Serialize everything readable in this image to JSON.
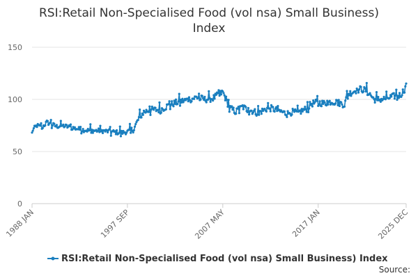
{
  "chart_data": {
    "type": "line",
    "title_lines": [
      "RSI:Retail Non-Specialised Food (vol nsa) Small Business)",
      "Index"
    ],
    "xlabel": "",
    "ylabel": "",
    "x_tick_labels": [
      "1988 JAN",
      "1997 SEP",
      "2007 MAY",
      "2017 JAN",
      "2025 DEC"
    ],
    "x_tick_indices": [
      0,
      116,
      232,
      348,
      455
    ],
    "n_points": 456,
    "ylim": [
      0,
      150
    ],
    "y_ticks": [
      0,
      50,
      100,
      150
    ],
    "grid": "horizontal",
    "color": "#1a7fbf",
    "legend_position": "bottom-center",
    "series": [
      {
        "name": "RSI:Retail Non-Specialised Food (vol nsa) Small Business) Index",
        "anchors": [
          [
            0,
            70
          ],
          [
            6,
            75
          ],
          [
            12,
            73
          ],
          [
            18,
            78
          ],
          [
            24,
            76
          ],
          [
            30,
            74
          ],
          [
            36,
            75
          ],
          [
            48,
            73
          ],
          [
            60,
            71
          ],
          [
            72,
            70
          ],
          [
            84,
            70
          ],
          [
            96,
            69
          ],
          [
            108,
            68
          ],
          [
            116,
            69
          ],
          [
            120,
            70
          ],
          [
            124,
            72
          ],
          [
            130,
            82
          ],
          [
            136,
            88
          ],
          [
            144,
            90
          ],
          [
            156,
            90
          ],
          [
            168,
            95
          ],
          [
            180,
            98
          ],
          [
            192,
            100
          ],
          [
            200,
            102
          ],
          [
            210,
            100
          ],
          [
            220,
            101
          ],
          [
            232,
            107
          ],
          [
            236,
            100
          ],
          [
            240,
            92
          ],
          [
            248,
            88
          ],
          [
            256,
            93
          ],
          [
            262,
            90
          ],
          [
            268,
            89
          ],
          [
            274,
            87
          ],
          [
            280,
            89
          ],
          [
            288,
            92
          ],
          [
            296,
            90
          ],
          [
            304,
            88
          ],
          [
            310,
            86
          ],
          [
            316,
            88
          ],
          [
            322,
            87
          ],
          [
            328,
            89
          ],
          [
            334,
            91
          ],
          [
            340,
            96
          ],
          [
            348,
            97
          ],
          [
            356,
            96
          ],
          [
            364,
            98
          ],
          [
            372,
            97
          ],
          [
            380,
            95
          ],
          [
            384,
            105
          ],
          [
            392,
            108
          ],
          [
            400,
            110
          ],
          [
            408,
            108
          ],
          [
            416,
            100
          ],
          [
            424,
            100
          ],
          [
            432,
            101
          ],
          [
            440,
            103
          ],
          [
            448,
            104
          ],
          [
            455,
            112
          ]
        ]
      }
    ],
    "source_label": "Source:"
  }
}
